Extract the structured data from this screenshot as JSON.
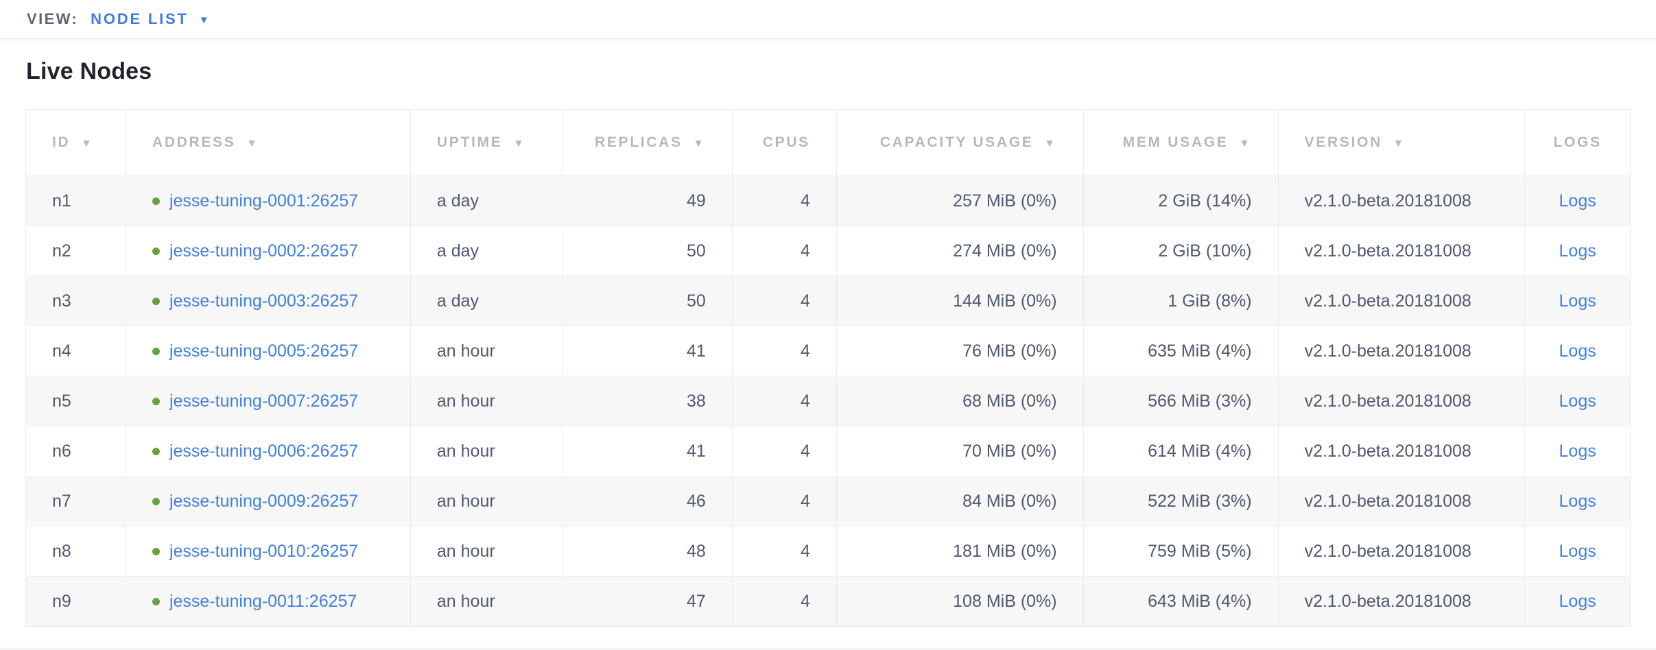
{
  "view_bar": {
    "label": "VIEW:",
    "selected": "NODE LIST"
  },
  "icons": {
    "sort_desc": "▼",
    "dropdown_caret": "▼"
  },
  "colors": {
    "accent_blue": "#3f7ce0",
    "link_blue": "#4180dc",
    "status_live_green": "#64a33e",
    "header_text_gray": "#b5b8be",
    "cell_text": "#50596d",
    "row_alt_bg": "#f7f7f8"
  },
  "page_title": "Live Nodes",
  "table": {
    "columns": [
      {
        "label": "ID",
        "sortable": true
      },
      {
        "label": "ADDRESS",
        "sortable": true
      },
      {
        "label": "UPTIME",
        "sortable": true
      },
      {
        "label": "REPLICAS",
        "sortable": true
      },
      {
        "label": "CPUS",
        "sortable": false
      },
      {
        "label": "CAPACITY USAGE",
        "sortable": true
      },
      {
        "label": "MEM USAGE",
        "sortable": true
      },
      {
        "label": "VERSION",
        "sortable": true
      },
      {
        "label": "LOGS",
        "sortable": false
      }
    ],
    "rows": [
      {
        "id": "n1",
        "status": "live",
        "address": "jesse-tuning-0001:26257",
        "uptime": "a day",
        "replicas": "49",
        "cpus": "4",
        "capacity_usage": "257 MiB (0%)",
        "mem_usage": "2 GiB (14%)",
        "version": "v2.1.0-beta.20181008",
        "logs_label": "Logs"
      },
      {
        "id": "n2",
        "status": "live",
        "address": "jesse-tuning-0002:26257",
        "uptime": "a day",
        "replicas": "50",
        "cpus": "4",
        "capacity_usage": "274 MiB (0%)",
        "mem_usage": "2 GiB (10%)",
        "version": "v2.1.0-beta.20181008",
        "logs_label": "Logs"
      },
      {
        "id": "n3",
        "status": "live",
        "address": "jesse-tuning-0003:26257",
        "uptime": "a day",
        "replicas": "50",
        "cpus": "4",
        "capacity_usage": "144 MiB (0%)",
        "mem_usage": "1 GiB (8%)",
        "version": "v2.1.0-beta.20181008",
        "logs_label": "Logs"
      },
      {
        "id": "n4",
        "status": "live",
        "address": "jesse-tuning-0005:26257",
        "uptime": "an hour",
        "replicas": "41",
        "cpus": "4",
        "capacity_usage": "76 MiB (0%)",
        "mem_usage": "635 MiB (4%)",
        "version": "v2.1.0-beta.20181008",
        "logs_label": "Logs"
      },
      {
        "id": "n5",
        "status": "live",
        "address": "jesse-tuning-0007:26257",
        "uptime": "an hour",
        "replicas": "38",
        "cpus": "4",
        "capacity_usage": "68 MiB (0%)",
        "mem_usage": "566 MiB (3%)",
        "version": "v2.1.0-beta.20181008",
        "logs_label": "Logs"
      },
      {
        "id": "n6",
        "status": "live",
        "address": "jesse-tuning-0006:26257",
        "uptime": "an hour",
        "replicas": "41",
        "cpus": "4",
        "capacity_usage": "70 MiB (0%)",
        "mem_usage": "614 MiB (4%)",
        "version": "v2.1.0-beta.20181008",
        "logs_label": "Logs"
      },
      {
        "id": "n7",
        "status": "live",
        "address": "jesse-tuning-0009:26257",
        "uptime": "an hour",
        "replicas": "46",
        "cpus": "4",
        "capacity_usage": "84 MiB (0%)",
        "mem_usage": "522 MiB (3%)",
        "version": "v2.1.0-beta.20181008",
        "logs_label": "Logs"
      },
      {
        "id": "n8",
        "status": "live",
        "address": "jesse-tuning-0010:26257",
        "uptime": "an hour",
        "replicas": "48",
        "cpus": "4",
        "capacity_usage": "181 MiB (0%)",
        "mem_usage": "759 MiB (5%)",
        "version": "v2.1.0-beta.20181008",
        "logs_label": "Logs"
      },
      {
        "id": "n9",
        "status": "live",
        "address": "jesse-tuning-0011:26257",
        "uptime": "an hour",
        "replicas": "47",
        "cpus": "4",
        "capacity_usage": "108 MiB (0%)",
        "mem_usage": "643 MiB (4%)",
        "version": "v2.1.0-beta.20181008",
        "logs_label": "Logs"
      }
    ]
  }
}
